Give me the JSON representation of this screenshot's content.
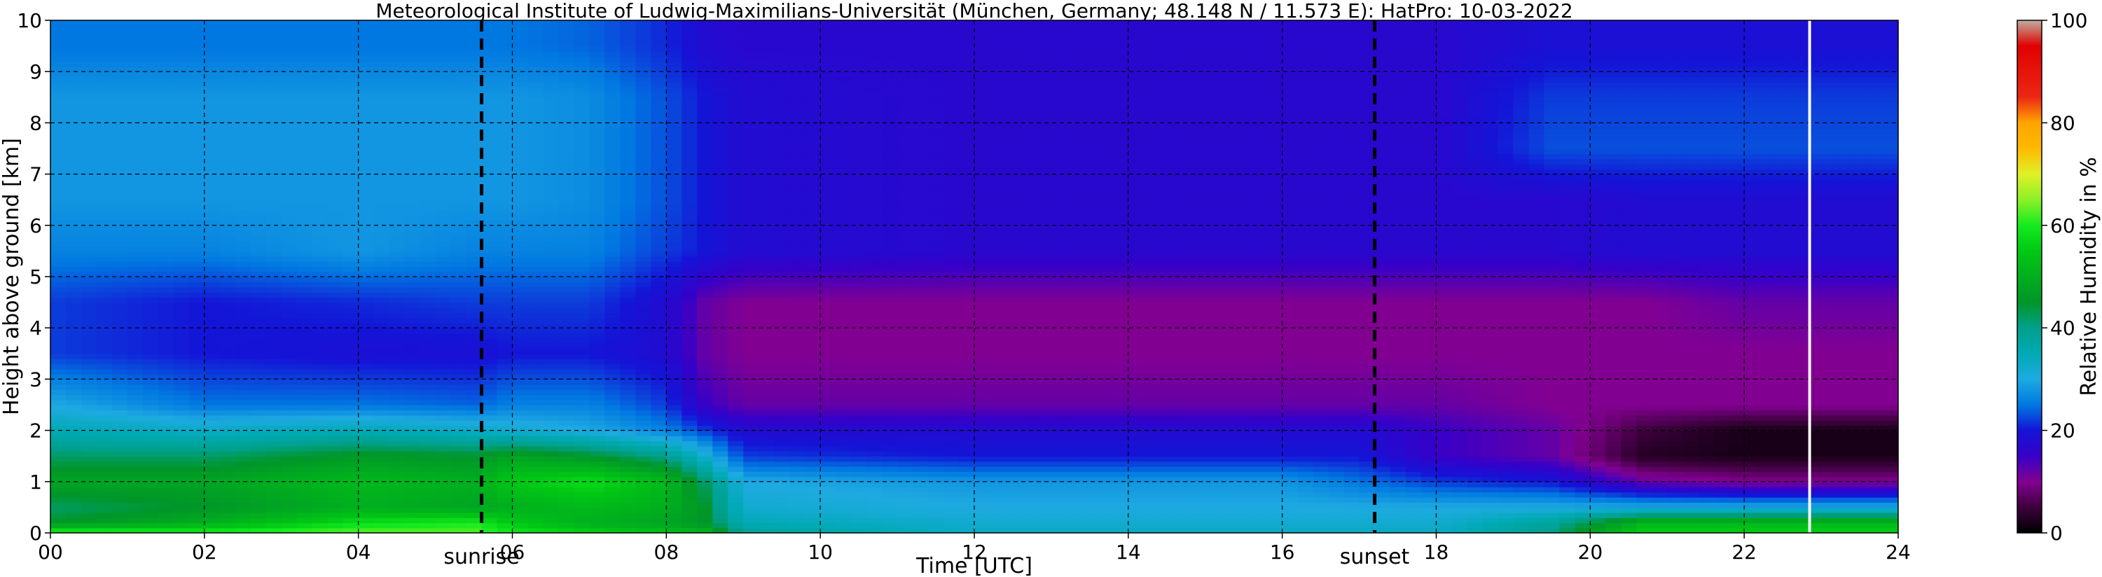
{
  "chart_data": {
    "type": "heatmap",
    "title": "Meteorological Institute of Ludwig-Maximilians-Universität (München, Germany; 48.148 N / 11.573 E):    HatPro: 10-03-2022",
    "xlabel": "Time [UTC]",
    "ylabel": "Height above ground [km]",
    "xlim": [
      0,
      24
    ],
    "ylim": [
      0,
      10
    ],
    "x_ticks": [
      "00",
      "02",
      "04",
      "06",
      "08",
      "10",
      "12",
      "14",
      "16",
      "18",
      "20",
      "22",
      "24"
    ],
    "y_ticks": [
      "0",
      "1",
      "2",
      "3",
      "4",
      "5",
      "6",
      "7",
      "8",
      "9",
      "10"
    ],
    "grid": true,
    "colorbar": {
      "label": "Relative Humidity in %",
      "range": [
        0,
        100
      ],
      "ticks": [
        "0",
        "20",
        "40",
        "60",
        "80",
        "100"
      ]
    },
    "annotations": [
      {
        "text": "sunrise",
        "x": 5.6
      },
      {
        "text": "sunset",
        "x": 17.2
      }
    ],
    "vertical_markers": [
      {
        "x": 5.6,
        "style": "dashed",
        "color": "#000000"
      },
      {
        "x": 17.2,
        "style": "dashed",
        "color": "#000000"
      },
      {
        "x": 22.85,
        "style": "solid",
        "color": "#ffffff"
      }
    ],
    "heights_km": [
      0.05,
      0.2,
      0.5,
      1.0,
      1.5,
      2.0,
      2.5,
      3.5,
      4.5,
      5.5,
      6.5,
      7.5,
      8.5,
      9.5
    ],
    "times_utc": [
      0,
      2,
      4,
      5.5,
      6,
      7,
      8,
      8.5,
      9,
      12,
      16,
      17,
      18,
      19.5,
      20.7,
      22,
      24
    ],
    "rh_percent": [
      [
        58,
        58,
        62,
        62,
        58,
        55,
        52,
        50,
        38,
        33,
        33,
        33,
        33,
        40,
        55,
        55,
        55
      ],
      [
        45,
        50,
        58,
        60,
        55,
        50,
        48,
        45,
        35,
        32,
        32,
        32,
        32,
        38,
        52,
        52,
        52
      ],
      [
        42,
        45,
        50,
        48,
        50,
        52,
        50,
        45,
        32,
        30,
        30,
        30,
        30,
        30,
        30,
        30,
        30
      ],
      [
        48,
        48,
        52,
        50,
        55,
        58,
        52,
        42,
        30,
        28,
        28,
        25,
        22,
        20,
        12,
        10,
        10
      ],
      [
        42,
        42,
        46,
        45,
        48,
        45,
        40,
        32,
        22,
        20,
        20,
        20,
        15,
        12,
        3,
        2,
        2
      ],
      [
        35,
        33,
        35,
        33,
        32,
        30,
        26,
        22,
        18,
        18,
        18,
        18,
        15,
        12,
        5,
        2,
        2
      ],
      [
        30,
        25,
        25,
        24,
        26,
        26,
        22,
        15,
        12,
        12,
        12,
        12,
        12,
        10,
        10,
        10,
        10
      ],
      [
        22,
        20,
        19,
        19,
        20,
        20,
        18,
        12,
        10,
        10,
        10,
        10,
        10,
        10,
        10,
        10,
        10
      ],
      [
        22,
        20,
        21,
        22,
        22,
        22,
        18,
        12,
        10,
        10,
        10,
        10,
        10,
        10,
        10,
        12,
        12
      ],
      [
        26,
        26,
        28,
        26,
        26,
        26,
        22,
        20,
        18,
        17,
        17,
        17,
        17,
        17,
        18,
        18,
        18
      ],
      [
        28,
        28,
        28,
        28,
        28,
        27,
        23,
        20,
        18,
        17,
        17,
        17,
        17,
        17,
        18,
        18,
        18
      ],
      [
        28,
        28,
        28,
        28,
        28,
        27,
        23,
        20,
        18,
        17,
        17,
        17,
        17,
        23,
        23,
        23,
        23
      ],
      [
        28,
        28,
        28,
        28,
        28,
        27,
        23,
        20,
        18,
        17,
        17,
        17,
        17,
        22,
        22,
        22,
        22
      ],
      [
        25,
        25,
        25,
        25,
        25,
        24,
        21,
        18,
        17,
        17,
        17,
        17,
        17,
        19,
        19,
        19,
        19
      ]
    ]
  }
}
